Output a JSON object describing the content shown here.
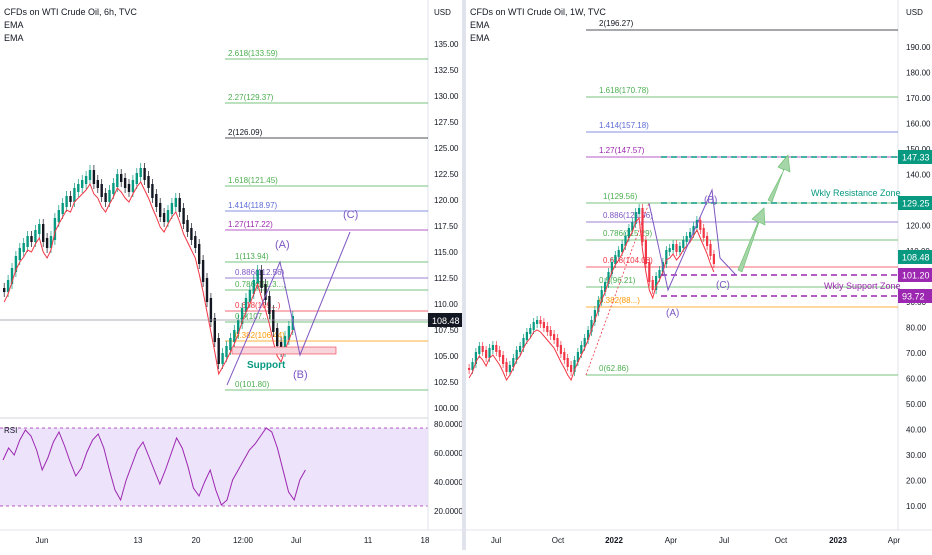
{
  "left_chart": {
    "title": "CFDs on WTI Crude Oil, 6h, TVC",
    "indicators": [
      "EMA",
      "EMA"
    ],
    "currency": "USD",
    "price_ticks": [
      "135.00",
      "132.50",
      "130.00",
      "127.50",
      "125.00",
      "122.50",
      "120.00",
      "117.50",
      "115.00",
      "112.50",
      "110.00",
      "107.50",
      "105.00",
      "102.50",
      "100.00"
    ],
    "rsi_label": "RSI",
    "rsi_ticks": [
      "80.0000",
      "60.0000",
      "40.0000",
      "20.0000"
    ],
    "time_ticks": [
      "Jun",
      "13",
      "20",
      "12:00",
      "Jul",
      "11",
      "18"
    ],
    "fib_levels": [
      {
        "label": "2.618(133.59)",
        "color": "#4caf50"
      },
      {
        "label": "2.27(129.37)",
        "color": "#4caf50"
      },
      {
        "label": "2(126.09)",
        "color": "#131722"
      },
      {
        "label": "1.618(121.45)",
        "color": "#4caf50"
      },
      {
        "label": "1.414(118.97)",
        "color": "#5b6bd6"
      },
      {
        "label": "1.27(117.22)",
        "color": "#9c27b0"
      },
      {
        "label": "1(113.94)",
        "color": "#4caf50"
      },
      {
        "label": "0.886(112.56)",
        "color": "#7e57c2"
      },
      {
        "label": "0.786(111.3...)",
        "color": "#4caf50"
      },
      {
        "label": "0.618(109...)",
        "color": "#f23645"
      },
      {
        "label": "0.5(107...)",
        "color": "#4caf50"
      },
      {
        "label": "0.382(106.44)",
        "color": "#ff9800"
      },
      {
        "label": "0(101.80)",
        "color": "#4caf50"
      }
    ],
    "wave_labels": {
      "a": "(A)",
      "b": "(B)",
      "c": "(C)"
    },
    "support_label": "Support",
    "last_price": "108.48"
  },
  "right_chart": {
    "title": "CFDs on WTI Crude Oil, 1W, TVC",
    "indicators": [
      "EMA",
      "EMA"
    ],
    "currency": "USD",
    "price_ticks": [
      "190.00",
      "180.00",
      "170.00",
      "160.00",
      "150.00",
      "140.00",
      "130.00",
      "120.00",
      "110.00",
      "100.00",
      "90.00",
      "80.00",
      "70.00",
      "60.00",
      "50.00",
      "40.00",
      "30.00",
      "20.00",
      "10.00"
    ],
    "time_ticks": [
      "Jul",
      "Oct",
      "2022",
      "Apr",
      "Jul",
      "Oct",
      "2023",
      "Apr"
    ],
    "fib_levels": [
      {
        "label": "2(196.27)",
        "color": "#131722"
      },
      {
        "label": "1.618(170.78)",
        "color": "#4caf50"
      },
      {
        "label": "1.414(157.18)",
        "color": "#5b6bd6"
      },
      {
        "label": "1.27(147.57)",
        "color": "#9c27b0"
      },
      {
        "label": "1(129.56)",
        "color": "#4caf50"
      },
      {
        "label": "0.886(121.96)",
        "color": "#7e57c2"
      },
      {
        "label": "0.786(115.29)",
        "color": "#4caf50"
      },
      {
        "label": "0.618(104.08)",
        "color": "#f23645"
      },
      {
        "label": "0.5(96.21)",
        "color": "#4caf50"
      },
      {
        "label": "0.382(88...)",
        "color": "#ff9800"
      },
      {
        "label": "0(62.86)",
        "color": "#4caf50"
      }
    ],
    "wave_labels": {
      "a": "(A)",
      "b": "(B)",
      "c": "(C)"
    },
    "resistance_label": "Wkly Resistance  Zone",
    "support_label": "Wkly Support Zone",
    "price_badges": [
      {
        "value": "147.33",
        "color": "#089981"
      },
      {
        "value": "129.25",
        "color": "#089981"
      },
      {
        "value": "108.48",
        "color": "#089981"
      },
      {
        "value": "101.20",
        "color": "#9c27b0"
      },
      {
        "value": "93.72",
        "color": "#9c27b0"
      }
    ]
  }
}
